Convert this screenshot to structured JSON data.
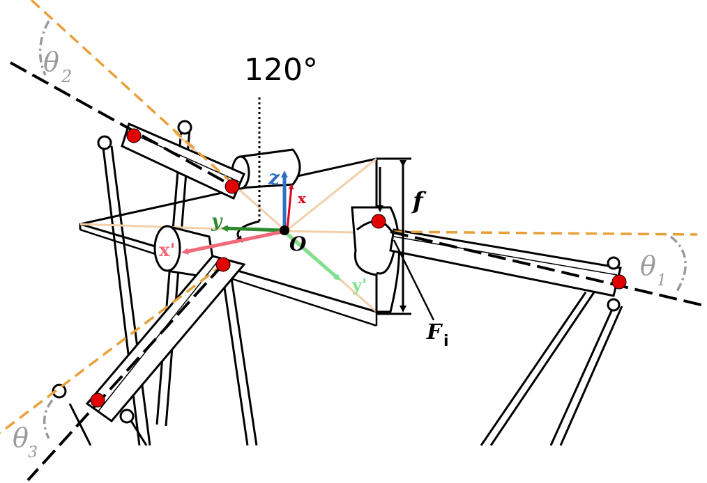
{
  "labels": {
    "angle_top": "120°",
    "theta1": "θ",
    "theta1_sub": "1",
    "theta2": "θ",
    "theta2_sub": "2",
    "theta3": "θ",
    "theta3_sub": "3",
    "axis_z": "z",
    "axis_x": "x",
    "axis_y": "y",
    "axis_x_prime": "x'",
    "axis_y_prime": "y'",
    "origin": "O",
    "dimension_f": "f",
    "force": "F",
    "force_sub": "i"
  },
  "colors": {
    "orange_dash": "#e8a03a",
    "black_dash": "#000000",
    "joint_red": "#e00000",
    "axis_z": "#2f6fc2",
    "axis_x": "#e0001a",
    "axis_y": "#2e8a2e",
    "axis_x_prime": "#f06a7a",
    "axis_y_prime": "#7fe08f",
    "theta_gray": "#9a9a9a",
    "peach_line": "#f3cfa8"
  }
}
